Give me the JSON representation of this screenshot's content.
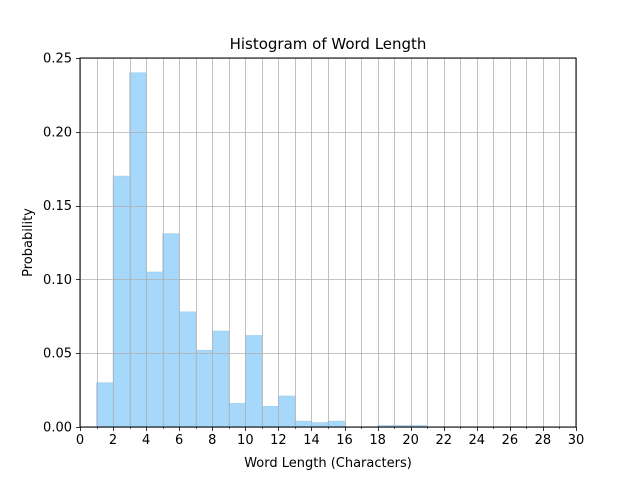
{
  "chart_data": {
    "type": "bar",
    "title": "Histogram of Word Length",
    "xlabel": "Word Length (Characters)",
    "ylabel": "Probability",
    "xlim": [
      0,
      30
    ],
    "ylim": [
      0,
      0.25
    ],
    "grid": true,
    "bar_color": "#a5d8fa",
    "bar_edge_color": "#9fcde9",
    "grid_color": "#b0b0b0",
    "x_major_ticks": [
      0,
      2,
      4,
      6,
      8,
      10,
      12,
      14,
      16,
      18,
      20,
      22,
      24,
      26,
      28,
      30
    ],
    "x_tick_labels": [
      "0",
      "2",
      "4",
      "6",
      "8",
      "10",
      "12",
      "14",
      "16",
      "18",
      "20",
      "22",
      "24",
      "26",
      "28",
      "30"
    ],
    "x_minor_ticks": [
      1,
      3,
      5,
      7,
      9,
      11,
      13,
      15,
      17,
      19,
      21,
      23,
      25,
      27,
      29
    ],
    "y_ticks": [
      0,
      0.05,
      0.1,
      0.15,
      0.2,
      0.25
    ],
    "y_tick_labels": [
      "0.00",
      "0.05",
      "0.10",
      "0.15",
      "0.20",
      "0.25"
    ],
    "bins": [
      {
        "x0": 1,
        "x1": 2,
        "value": 0.03
      },
      {
        "x0": 2,
        "x1": 3,
        "value": 0.17
      },
      {
        "x0": 3,
        "x1": 4,
        "value": 0.24
      },
      {
        "x0": 4,
        "x1": 5,
        "value": 0.105
      },
      {
        "x0": 5,
        "x1": 6,
        "value": 0.131
      },
      {
        "x0": 6,
        "x1": 7,
        "value": 0.078
      },
      {
        "x0": 7,
        "x1": 8,
        "value": 0.052
      },
      {
        "x0": 8,
        "x1": 9,
        "value": 0.065
      },
      {
        "x0": 9,
        "x1": 10,
        "value": 0.016
      },
      {
        "x0": 10,
        "x1": 11,
        "value": 0.062
      },
      {
        "x0": 11,
        "x1": 12,
        "value": 0.014
      },
      {
        "x0": 12,
        "x1": 13,
        "value": 0.021
      },
      {
        "x0": 13,
        "x1": 14,
        "value": 0.004
      },
      {
        "x0": 14,
        "x1": 15,
        "value": 0.003
      },
      {
        "x0": 15,
        "x1": 16,
        "value": 0.004
      },
      {
        "x0": 16,
        "x1": 17,
        "value": 0.0
      },
      {
        "x0": 17,
        "x1": 18,
        "value": 0.0
      },
      {
        "x0": 18,
        "x1": 19,
        "value": 0.001
      },
      {
        "x0": 19,
        "x1": 20,
        "value": 0.001
      },
      {
        "x0": 20,
        "x1": 21,
        "value": 0.001
      }
    ]
  }
}
